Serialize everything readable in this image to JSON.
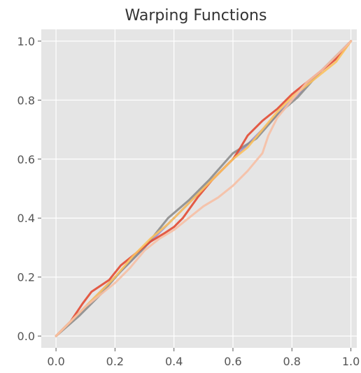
{
  "chart_data": {
    "type": "line",
    "title": "Warping Functions",
    "xlabel": "",
    "ylabel": "",
    "xlim": [
      -0.05,
      1.02
    ],
    "ylim": [
      -0.04,
      1.04
    ],
    "xticks": [
      "0.0",
      "0.2",
      "0.4",
      "0.6",
      "0.8",
      "1.0"
    ],
    "yticks": [
      "0.0",
      "0.2",
      "0.4",
      "0.6",
      "0.8",
      "1.0"
    ],
    "grid": true,
    "legend": "none",
    "background_color": "#e5e5e5",
    "grid_color": "#ffffff",
    "series": [
      {
        "color": "#988ed5",
        "x": [
          0.0,
          0.1,
          0.2,
          0.3,
          0.4,
          0.5,
          0.6,
          0.7,
          0.8,
          0.9,
          1.0
        ],
        "y": [
          0.0,
          0.1,
          0.2,
          0.3,
          0.4,
          0.5,
          0.6,
          0.7,
          0.8,
          0.9,
          1.0
        ]
      },
      {
        "color": "#8c8c8c",
        "x": [
          0.0,
          0.08,
          0.15,
          0.22,
          0.3,
          0.38,
          0.45,
          0.52,
          0.6,
          0.68,
          0.75,
          0.82,
          0.9,
          1.0
        ],
        "y": [
          0.0,
          0.07,
          0.14,
          0.22,
          0.3,
          0.4,
          0.46,
          0.53,
          0.62,
          0.67,
          0.75,
          0.81,
          0.9,
          1.0
        ]
      },
      {
        "color": "#e24a33",
        "x": [
          0.0,
          0.05,
          0.09,
          0.12,
          0.18,
          0.22,
          0.27,
          0.32,
          0.37,
          0.4,
          0.43,
          0.48,
          0.53,
          0.58,
          0.6,
          0.62,
          0.65,
          0.7,
          0.75,
          0.8,
          0.85,
          0.9,
          0.95,
          1.0
        ],
        "y": [
          0.0,
          0.05,
          0.11,
          0.15,
          0.19,
          0.24,
          0.28,
          0.32,
          0.35,
          0.37,
          0.4,
          0.47,
          0.53,
          0.58,
          0.6,
          0.63,
          0.68,
          0.73,
          0.77,
          0.82,
          0.86,
          0.9,
          0.94,
          1.0
        ]
      },
      {
        "color": "#fbc15e",
        "x": [
          0.0,
          0.06,
          0.12,
          0.2,
          0.26,
          0.32,
          0.38,
          0.44,
          0.5,
          0.56,
          0.6,
          0.65,
          0.7,
          0.75,
          0.8,
          0.85,
          0.9,
          0.95,
          1.0
        ],
        "y": [
          0.0,
          0.06,
          0.12,
          0.2,
          0.27,
          0.33,
          0.38,
          0.44,
          0.5,
          0.56,
          0.6,
          0.64,
          0.7,
          0.76,
          0.81,
          0.85,
          0.89,
          0.93,
          1.0
        ]
      },
      {
        "color": "#f6bfa4",
        "x": [
          0.0,
          0.1,
          0.2,
          0.25,
          0.3,
          0.35,
          0.4,
          0.45,
          0.5,
          0.55,
          0.6,
          0.65,
          0.7,
          0.72,
          0.75,
          0.8,
          0.85,
          0.9,
          0.95,
          1.0
        ],
        "y": [
          0.0,
          0.1,
          0.18,
          0.23,
          0.29,
          0.33,
          0.36,
          0.4,
          0.44,
          0.47,
          0.51,
          0.56,
          0.62,
          0.68,
          0.74,
          0.8,
          0.86,
          0.9,
          0.95,
          1.0
        ]
      }
    ]
  }
}
